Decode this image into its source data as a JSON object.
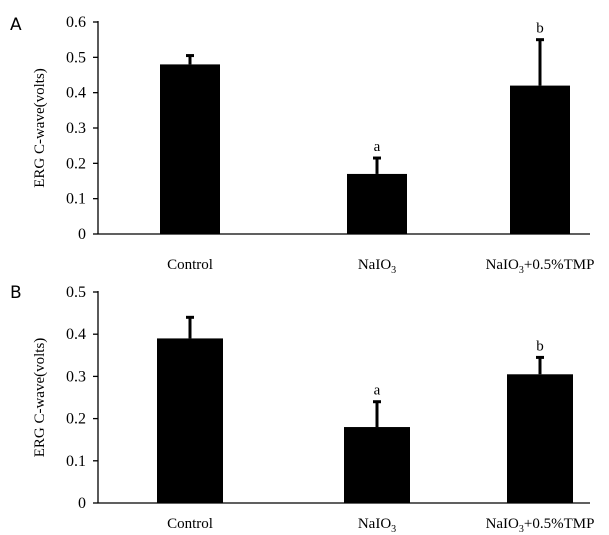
{
  "chart_data": [
    {
      "panel": "A",
      "type": "bar",
      "ylabel": "ERG C-wave(volts)",
      "ylim": [
        0,
        0.6
      ],
      "yticks": [
        "0",
        "0.1",
        "0.2",
        "0.3",
        "0.4",
        "0.5",
        "0.6"
      ],
      "categories": [
        {
          "main": "Control",
          "sub": "",
          "tail": ""
        },
        {
          "main": "NaIO",
          "sub": "3",
          "tail": ""
        },
        {
          "main": "NaIO",
          "sub": "3",
          "tail": "+0.5%TMP"
        }
      ],
      "values": [
        0.48,
        0.17,
        0.42
      ],
      "errors": [
        0.025,
        0.045,
        0.13
      ],
      "annotations": [
        "",
        "a",
        "b"
      ],
      "bar_color": "#000000"
    },
    {
      "panel": "B",
      "type": "bar",
      "ylabel": "ERG C-wave(volts)",
      "ylim": [
        0,
        0.5
      ],
      "yticks": [
        "0",
        "0.1",
        "0.2",
        "0.3",
        "0.4",
        "0.5"
      ],
      "categories": [
        {
          "main": "Control",
          "sub": "",
          "tail": ""
        },
        {
          "main": "NaIO",
          "sub": "3",
          "tail": ""
        },
        {
          "main": "NaIO",
          "sub": "3",
          "tail": "+0.5%TMP"
        }
      ],
      "values": [
        0.39,
        0.18,
        0.305
      ],
      "errors": [
        0.05,
        0.06,
        0.04
      ],
      "annotations": [
        "",
        "a",
        "b"
      ],
      "bar_color": "#000000"
    }
  ]
}
